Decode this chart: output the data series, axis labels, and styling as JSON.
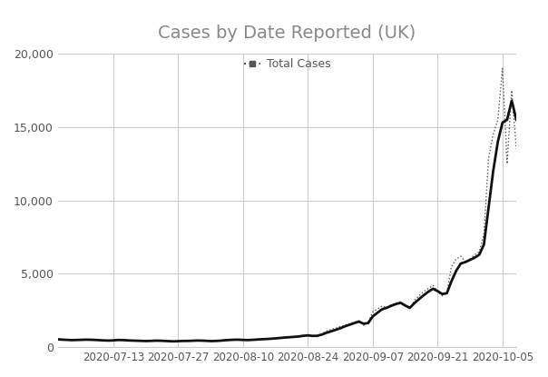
{
  "title": "Cases by Date Reported (UK)",
  "legend_label": "Total Cases",
  "title_color": "#888888",
  "line_color_solid": "#111111",
  "line_color_dotted": "#555555",
  "background_color": "#ffffff",
  "grid_color": "#cccccc",
  "ylim": [
    0,
    20000
  ],
  "yticks": [
    0,
    5000,
    10000,
    15000,
    20000
  ],
  "dates": [
    "2020-07-01",
    "2020-07-02",
    "2020-07-03",
    "2020-07-04",
    "2020-07-05",
    "2020-07-06",
    "2020-07-07",
    "2020-07-08",
    "2020-07-09",
    "2020-07-10",
    "2020-07-11",
    "2020-07-12",
    "2020-07-13",
    "2020-07-14",
    "2020-07-15",
    "2020-07-16",
    "2020-07-17",
    "2020-07-18",
    "2020-07-19",
    "2020-07-20",
    "2020-07-21",
    "2020-07-22",
    "2020-07-23",
    "2020-07-24",
    "2020-07-25",
    "2020-07-26",
    "2020-07-27",
    "2020-07-28",
    "2020-07-29",
    "2020-07-30",
    "2020-07-31",
    "2020-08-01",
    "2020-08-02",
    "2020-08-03",
    "2020-08-04",
    "2020-08-05",
    "2020-08-06",
    "2020-08-07",
    "2020-08-08",
    "2020-08-09",
    "2020-08-10",
    "2020-08-11",
    "2020-08-12",
    "2020-08-13",
    "2020-08-14",
    "2020-08-15",
    "2020-08-16",
    "2020-08-17",
    "2020-08-18",
    "2020-08-19",
    "2020-08-20",
    "2020-08-21",
    "2020-08-22",
    "2020-08-23",
    "2020-08-24",
    "2020-08-25",
    "2020-08-26",
    "2020-08-27",
    "2020-08-28",
    "2020-08-29",
    "2020-08-30",
    "2020-08-31",
    "2020-09-01",
    "2020-09-02",
    "2020-09-03",
    "2020-09-04",
    "2020-09-05",
    "2020-09-06",
    "2020-09-07",
    "2020-09-08",
    "2020-09-09",
    "2020-09-10",
    "2020-09-11",
    "2020-09-12",
    "2020-09-13",
    "2020-09-14",
    "2020-09-15",
    "2020-09-16",
    "2020-09-17",
    "2020-09-18",
    "2020-09-19",
    "2020-09-20",
    "2020-09-21",
    "2020-09-22",
    "2020-09-23",
    "2020-09-24",
    "2020-09-25",
    "2020-09-26",
    "2020-09-27",
    "2020-09-28",
    "2020-09-29",
    "2020-09-30",
    "2020-10-01",
    "2020-10-02",
    "2020-10-03",
    "2020-10-04",
    "2020-10-05",
    "2020-10-06",
    "2020-10-07",
    "2020-10-08"
  ],
  "daily_cases": [
    570,
    530,
    490,
    460,
    480,
    500,
    520,
    510,
    490,
    470,
    450,
    440,
    460,
    500,
    480,
    460,
    440,
    430,
    420,
    410,
    430,
    450,
    440,
    420,
    400,
    390,
    410,
    430,
    420,
    440,
    460,
    450,
    430,
    410,
    420,
    440,
    480,
    500,
    520,
    510,
    490,
    480,
    500,
    530,
    550,
    560,
    580,
    610,
    640,
    680,
    700,
    720,
    750,
    800,
    820,
    750,
    780,
    900,
    1100,
    1200,
    1300,
    1400,
    1500,
    1600,
    1700,
    1800,
    1500,
    1700,
    2400,
    2600,
    2800,
    2700,
    2900,
    3000,
    3100,
    2800,
    2600,
    3200,
    3500,
    3800,
    4000,
    4200,
    3800,
    3500,
    3700,
    5500,
    6000,
    6200,
    5800,
    6000,
    6300,
    6500,
    7700,
    12900,
    14500,
    15500,
    19000,
    12500,
    17500,
    13500
  ],
  "smooth_cases": [
    530,
    510,
    495,
    480,
    488,
    498,
    510,
    505,
    492,
    476,
    458,
    448,
    462,
    488,
    482,
    462,
    448,
    438,
    428,
    418,
    425,
    442,
    440,
    424,
    408,
    395,
    408,
    422,
    424,
    435,
    450,
    446,
    432,
    415,
    422,
    438,
    468,
    488,
    505,
    508,
    492,
    482,
    498,
    518,
    538,
    552,
    572,
    598,
    625,
    655,
    678,
    700,
    725,
    775,
    800,
    768,
    772,
    858,
    980,
    1080,
    1180,
    1290,
    1420,
    1530,
    1640,
    1740,
    1600,
    1640,
    2100,
    2340,
    2580,
    2680,
    2820,
    2940,
    3020,
    2840,
    2680,
    3000,
    3280,
    3540,
    3780,
    3980,
    3820,
    3620,
    3680,
    4500,
    5200,
    5700,
    5800,
    5950,
    6100,
    6300,
    7000,
    9500,
    12000,
    14000,
    15300,
    15500,
    16800,
    15500
  ]
}
